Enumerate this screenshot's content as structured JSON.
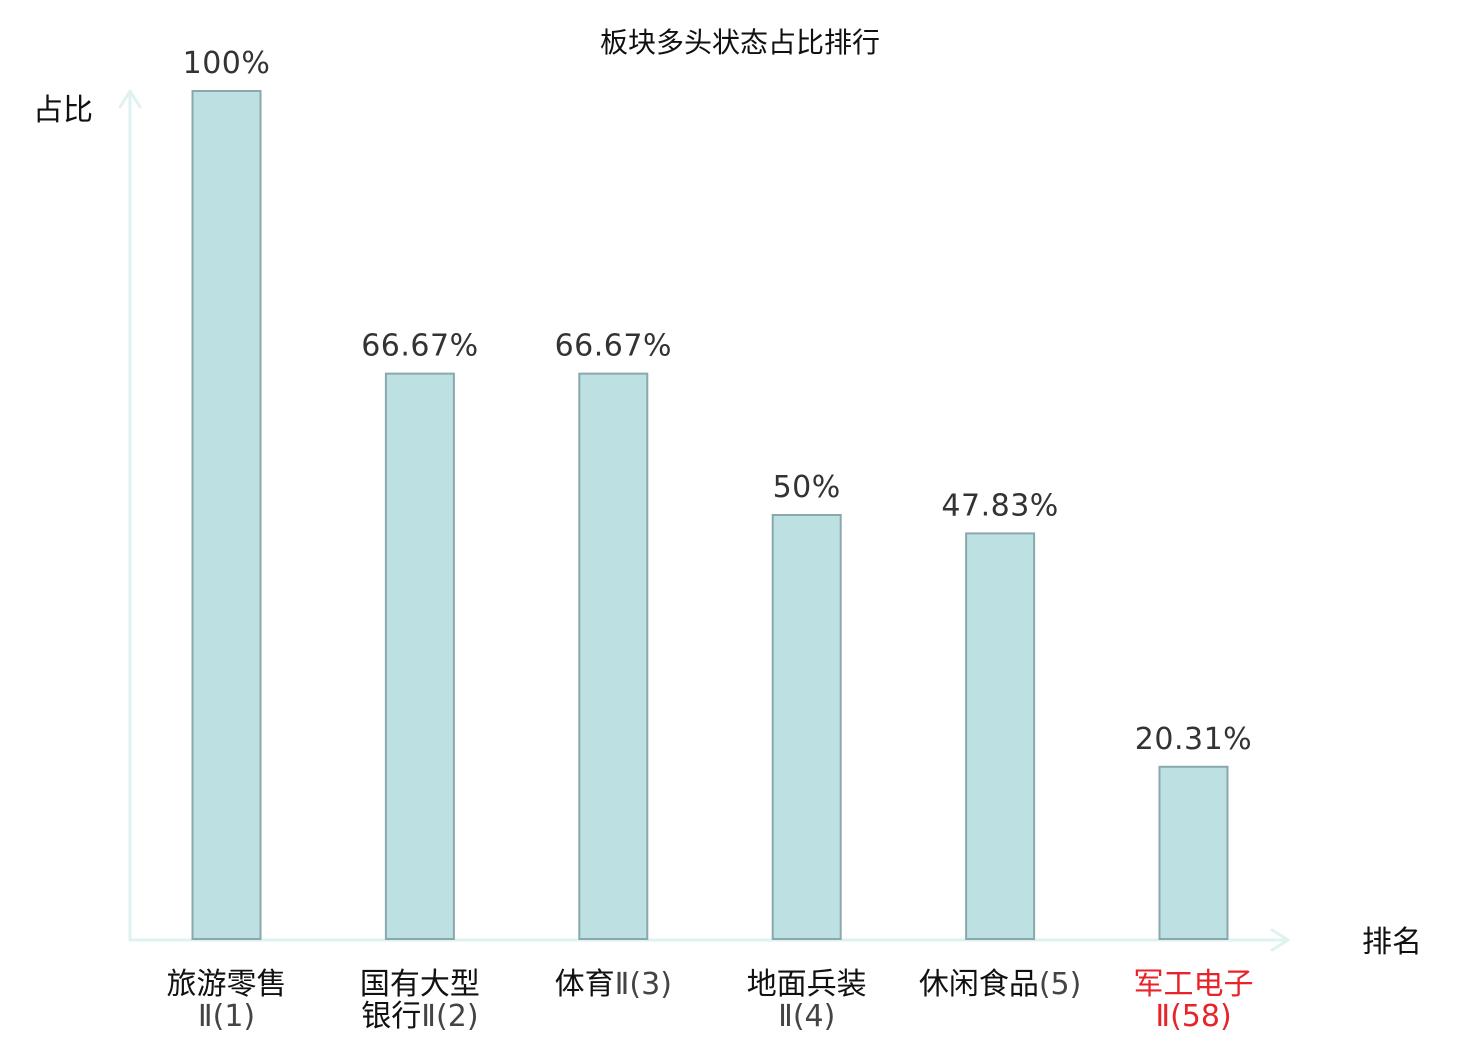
{
  "chart_data": {
    "type": "bar",
    "title": "板块多头状态占比排行",
    "ylabel": "占比",
    "xlabel": "排名",
    "ylim": [
      0,
      100
    ],
    "grid": false,
    "legend": "none",
    "categories": [
      {
        "name_lines": [
          "旅游零售"
        ],
        "rank": "Ⅱ(1)",
        "highlight": false
      },
      {
        "name_lines": [
          "国有大型",
          "银行"
        ],
        "rank": "Ⅱ(2)",
        "highlight": false
      },
      {
        "name_lines": [
          "体育"
        ],
        "rank": "Ⅱ(3)",
        "highlight": false
      },
      {
        "name_lines": [
          "地面兵装"
        ],
        "rank": "Ⅱ(4)",
        "highlight": false
      },
      {
        "name_lines": [
          "休闲食品"
        ],
        "rank": "(5)",
        "highlight": false
      },
      {
        "name_lines": [
          "军工电子"
        ],
        "rank": "Ⅱ(58)",
        "highlight": true
      }
    ],
    "values": [
      100,
      66.67,
      66.67,
      50,
      47.83,
      20.31
    ],
    "value_labels": [
      "100%",
      "66.67%",
      "66.67%",
      "50%",
      "47.83%",
      "20.31%"
    ]
  },
  "colors": {
    "bar_fill": "#bde0e3",
    "bar_stroke": "#8aa8ab",
    "axis": "#dff2f0",
    "label": "#111111",
    "rank": "#444444",
    "highlight": "#e8232a",
    "value": "#333333"
  }
}
